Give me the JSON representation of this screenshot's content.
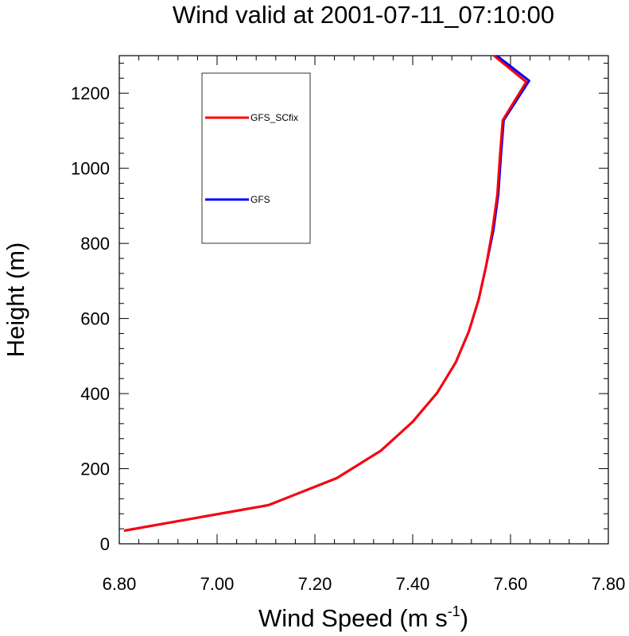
{
  "chart_data": {
    "type": "line",
    "title": "Wind valid at 2001-07-11_07:10:00",
    "xlabel": "Wind Speed (m s",
    "xlabel_superscript": "-1",
    "xlabel_suffix": ")",
    "ylabel": "Height (m)",
    "xlim": [
      6.8,
      7.8
    ],
    "ylim": [
      0,
      1300
    ],
    "xticks": [
      "6.80",
      "7.00",
      "7.20",
      "7.40",
      "7.60",
      "7.80"
    ],
    "yticks": [
      "0",
      "200",
      "400",
      "600",
      "800",
      "1000",
      "1200"
    ],
    "grid": false,
    "legend_placement": "top-left",
    "series": [
      {
        "name": "GFS",
        "color": "#0000ff",
        "points": [
          [
            6.81,
            35
          ],
          [
            7.105,
            103
          ],
          [
            7.245,
            175
          ],
          [
            7.335,
            248
          ],
          [
            7.4,
            325
          ],
          [
            7.45,
            402
          ],
          [
            7.488,
            483
          ],
          [
            7.515,
            566
          ],
          [
            7.535,
            651
          ],
          [
            7.55,
            740
          ],
          [
            7.565,
            835
          ],
          [
            7.575,
            930
          ],
          [
            7.58,
            1027
          ],
          [
            7.586,
            1128
          ],
          [
            7.638,
            1233
          ],
          [
            7.572,
            1300
          ]
        ]
      },
      {
        "name": "GFS_SCfix",
        "color": "#ff0000",
        "points": [
          [
            6.81,
            35
          ],
          [
            7.105,
            103
          ],
          [
            7.245,
            175
          ],
          [
            7.335,
            248
          ],
          [
            7.4,
            325
          ],
          [
            7.45,
            402
          ],
          [
            7.488,
            483
          ],
          [
            7.515,
            566
          ],
          [
            7.535,
            651
          ],
          [
            7.55,
            740
          ],
          [
            7.563,
            835
          ],
          [
            7.573,
            930
          ],
          [
            7.578,
            1027
          ],
          [
            7.584,
            1128
          ],
          [
            7.632,
            1230
          ],
          [
            7.566,
            1300
          ]
        ]
      }
    ],
    "legend_order": [
      "GFS_SCfix",
      "GFS"
    ]
  }
}
